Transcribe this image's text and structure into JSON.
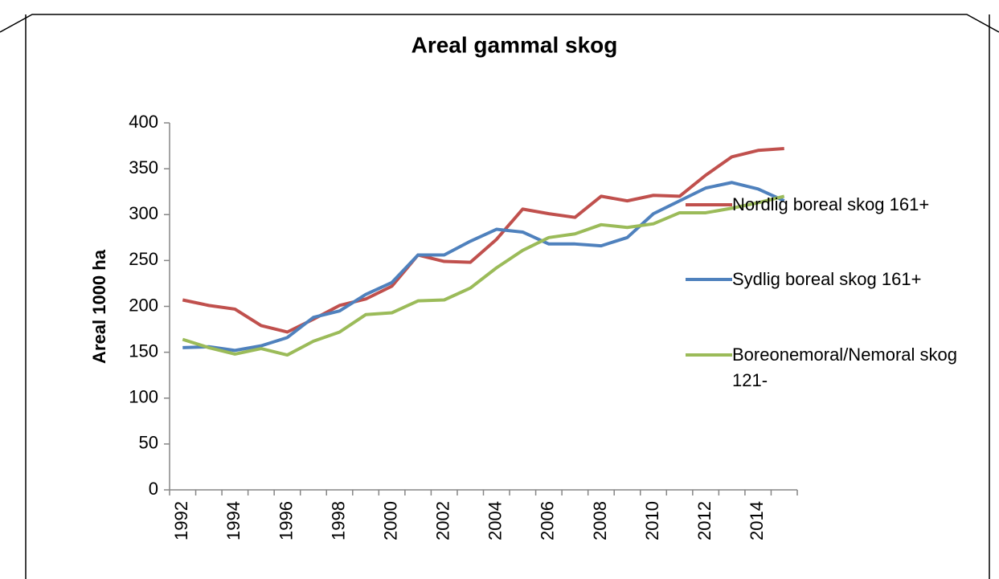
{
  "chart_data": {
    "type": "line",
    "title": "Areal gammal skog",
    "y_label": "Areal 1000 ha",
    "categories": [
      "1992",
      null,
      "1994",
      null,
      "1996",
      null,
      "1998",
      null,
      "2000",
      null,
      "2002",
      null,
      "2004",
      null,
      "2006",
      null,
      "2008",
      null,
      "2010",
      null,
      "2012",
      null,
      "2014",
      null
    ],
    "series": [
      {
        "name": "Nordlig boreal skog 161+",
        "color": "#c0504d",
        "values": [
          207,
          201,
          197,
          179,
          172,
          186,
          201,
          208,
          222,
          256,
          249,
          248,
          273,
          306,
          301,
          297,
          320,
          315,
          321,
          320,
          343,
          363,
          370,
          372
        ]
      },
      {
        "name": "Sydlig boreal skog 161+",
        "color": "#4f81bd",
        "values": [
          155,
          156,
          152,
          157,
          166,
          188,
          195,
          213,
          226,
          256,
          256,
          271,
          284,
          281,
          268,
          268,
          266,
          275,
          301,
          315,
          329,
          335,
          328,
          315
        ]
      },
      {
        "name": "Boreonemoral/Nemoral skog 121-",
        "color": "#9bbb59",
        "values": [
          164,
          155,
          148,
          154,
          147,
          162,
          172,
          191,
          193,
          206,
          207,
          220,
          242,
          261,
          275,
          279,
          289,
          286,
          290,
          302,
          302,
          307,
          313,
          320
        ]
      }
    ],
    "ylim": [
      0,
      400
    ],
    "yticks": [
      0,
      50,
      100,
      150,
      200,
      250,
      300,
      350,
      400
    ],
    "grid": false,
    "legend": "right"
  }
}
